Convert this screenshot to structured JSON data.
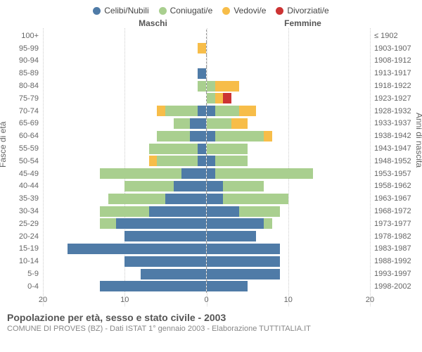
{
  "legend": [
    {
      "label": "Celibi/Nubili",
      "color": "#4f7ba7"
    },
    {
      "label": "Coniugati/e",
      "color": "#a9cf8f"
    },
    {
      "label": "Vedovi/e",
      "color": "#f7bd49"
    },
    {
      "label": "Divorziati/e",
      "color": "#cc3333"
    }
  ],
  "headers": {
    "male": "Maschi",
    "female": "Femmine"
  },
  "axis_labels": {
    "left": "Fasce di età",
    "right": "Anni di nascita"
  },
  "x_axis": {
    "max": 20,
    "ticks": [
      20,
      10,
      0,
      10,
      20
    ]
  },
  "footer": {
    "title": "Popolazione per età, sesso e stato civile - 2003",
    "sub": "COMUNE DI PROVES (BZ) - Dati ISTAT 1° gennaio 2003 - Elaborazione TUTTITALIA.IT"
  },
  "rows": [
    {
      "age": "100+",
      "birth": "≤ 1902",
      "m": {
        "c": 0,
        "k": 0,
        "v": 0,
        "d": 0
      },
      "f": {
        "c": 0,
        "k": 0,
        "v": 0,
        "d": 0
      }
    },
    {
      "age": "95-99",
      "birth": "1903-1907",
      "m": {
        "c": 0,
        "k": 0,
        "v": 1,
        "d": 0
      },
      "f": {
        "c": 0,
        "k": 0,
        "v": 0,
        "d": 0
      }
    },
    {
      "age": "90-94",
      "birth": "1908-1912",
      "m": {
        "c": 0,
        "k": 0,
        "v": 0,
        "d": 0
      },
      "f": {
        "c": 0,
        "k": 0,
        "v": 0,
        "d": 0
      }
    },
    {
      "age": "85-89",
      "birth": "1913-1917",
      "m": {
        "c": 1,
        "k": 0,
        "v": 0,
        "d": 0
      },
      "f": {
        "c": 0,
        "k": 0,
        "v": 0,
        "d": 0
      }
    },
    {
      "age": "80-84",
      "birth": "1918-1922",
      "m": {
        "c": 0,
        "k": 1,
        "v": 0,
        "d": 0
      },
      "f": {
        "c": 0,
        "k": 1,
        "v": 3,
        "d": 0
      }
    },
    {
      "age": "75-79",
      "birth": "1923-1927",
      "m": {
        "c": 0,
        "k": 0,
        "v": 0,
        "d": 0
      },
      "f": {
        "c": 0,
        "k": 1,
        "v": 1,
        "d": 1
      }
    },
    {
      "age": "70-74",
      "birth": "1928-1932",
      "m": {
        "c": 1,
        "k": 4,
        "v": 1,
        "d": 0
      },
      "f": {
        "c": 1,
        "k": 3,
        "v": 2,
        "d": 0
      }
    },
    {
      "age": "65-69",
      "birth": "1933-1937",
      "m": {
        "c": 2,
        "k": 2,
        "v": 0,
        "d": 0
      },
      "f": {
        "c": 0,
        "k": 3,
        "v": 2,
        "d": 0
      }
    },
    {
      "age": "60-64",
      "birth": "1938-1942",
      "m": {
        "c": 2,
        "k": 4,
        "v": 0,
        "d": 0
      },
      "f": {
        "c": 1,
        "k": 6,
        "v": 1,
        "d": 0
      }
    },
    {
      "age": "55-59",
      "birth": "1943-1947",
      "m": {
        "c": 1,
        "k": 6,
        "v": 0,
        "d": 0
      },
      "f": {
        "c": 0,
        "k": 5,
        "v": 0,
        "d": 0
      }
    },
    {
      "age": "50-54",
      "birth": "1948-1952",
      "m": {
        "c": 1,
        "k": 5,
        "v": 1,
        "d": 0
      },
      "f": {
        "c": 1,
        "k": 4,
        "v": 0,
        "d": 0
      }
    },
    {
      "age": "45-49",
      "birth": "1953-1957",
      "m": {
        "c": 3,
        "k": 10,
        "v": 0,
        "d": 0
      },
      "f": {
        "c": 1,
        "k": 12,
        "v": 0,
        "d": 0
      }
    },
    {
      "age": "40-44",
      "birth": "1958-1962",
      "m": {
        "c": 4,
        "k": 6,
        "v": 0,
        "d": 0
      },
      "f": {
        "c": 2,
        "k": 5,
        "v": 0,
        "d": 0
      }
    },
    {
      "age": "35-39",
      "birth": "1963-1967",
      "m": {
        "c": 5,
        "k": 7,
        "v": 0,
        "d": 0
      },
      "f": {
        "c": 2,
        "k": 8,
        "v": 0,
        "d": 0
      }
    },
    {
      "age": "30-34",
      "birth": "1968-1972",
      "m": {
        "c": 7,
        "k": 6,
        "v": 0,
        "d": 0
      },
      "f": {
        "c": 4,
        "k": 5,
        "v": 0,
        "d": 0
      }
    },
    {
      "age": "25-29",
      "birth": "1973-1977",
      "m": {
        "c": 11,
        "k": 2,
        "v": 0,
        "d": 0
      },
      "f": {
        "c": 7,
        "k": 1,
        "v": 0,
        "d": 0
      }
    },
    {
      "age": "20-24",
      "birth": "1978-1982",
      "m": {
        "c": 10,
        "k": 0,
        "v": 0,
        "d": 0
      },
      "f": {
        "c": 6,
        "k": 0,
        "v": 0,
        "d": 0
      }
    },
    {
      "age": "15-19",
      "birth": "1983-1987",
      "m": {
        "c": 17,
        "k": 0,
        "v": 0,
        "d": 0
      },
      "f": {
        "c": 9,
        "k": 0,
        "v": 0,
        "d": 0
      }
    },
    {
      "age": "10-14",
      "birth": "1988-1992",
      "m": {
        "c": 10,
        "k": 0,
        "v": 0,
        "d": 0
      },
      "f": {
        "c": 9,
        "k": 0,
        "v": 0,
        "d": 0
      }
    },
    {
      "age": "5-9",
      "birth": "1993-1997",
      "m": {
        "c": 8,
        "k": 0,
        "v": 0,
        "d": 0
      },
      "f": {
        "c": 9,
        "k": 0,
        "v": 0,
        "d": 0
      }
    },
    {
      "age": "0-4",
      "birth": "1998-2002",
      "m": {
        "c": 13,
        "k": 0,
        "v": 0,
        "d": 0
      },
      "f": {
        "c": 5,
        "k": 0,
        "v": 0,
        "d": 0
      }
    }
  ],
  "colors": {
    "c": "#4f7ba7",
    "k": "#a9cf8f",
    "v": "#f7bd49",
    "d": "#cc3333"
  }
}
